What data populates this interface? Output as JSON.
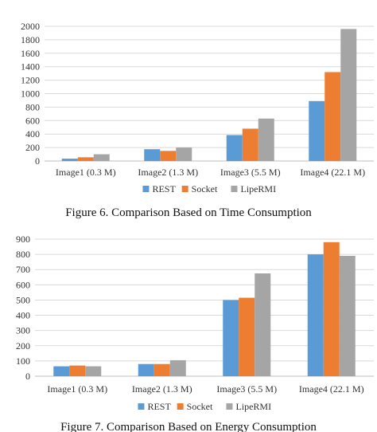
{
  "chart_data": [
    {
      "type": "bar",
      "title": "",
      "caption": "Figure 6. Comparison Based on Time Consumption",
      "categories": [
        "Image1 (0.3 M)",
        "Image2 (1.3 M)",
        "Image3 (5.5 M)",
        "Image4 (22.1 M)"
      ],
      "series": [
        {
          "name": "REST",
          "values": [
            35,
            175,
            385,
            890
          ]
        },
        {
          "name": "Socket",
          "values": [
            55,
            150,
            480,
            1320
          ]
        },
        {
          "name": "LipeRMI",
          "values": [
            100,
            200,
            630,
            1960
          ]
        }
      ],
      "xlabel": "",
      "ylabel": "",
      "ylim": [
        0,
        2000
      ],
      "yticks": [
        0,
        200,
        400,
        600,
        800,
        1000,
        1200,
        1400,
        1600,
        1800,
        2000
      ],
      "grid": true,
      "legend": "bottom"
    },
    {
      "type": "bar",
      "title": "",
      "caption": "Figure 7. Comparison Based on Energy Consumption",
      "categories": [
        "Image1 (0.3 M)",
        "Image2 (1.3 M)",
        "Image3 (5.5 M)",
        "Image4 (22.1 M)"
      ],
      "series": [
        {
          "name": "REST",
          "values": [
            65,
            80,
            500,
            800
          ]
        },
        {
          "name": "Socket",
          "values": [
            70,
            80,
            515,
            880
          ]
        },
        {
          "name": "LipeRMI",
          "values": [
            65,
            105,
            675,
            790
          ]
        }
      ],
      "xlabel": "",
      "ylabel": "",
      "ylim": [
        0,
        900
      ],
      "yticks": [
        0,
        100,
        200,
        300,
        400,
        500,
        600,
        700,
        800,
        900
      ],
      "grid": true,
      "legend": "bottom"
    }
  ],
  "colors": {
    "REST": "#5b9bd5",
    "Socket": "#ed7d31",
    "LipeRMI": "#a5a5a5"
  }
}
